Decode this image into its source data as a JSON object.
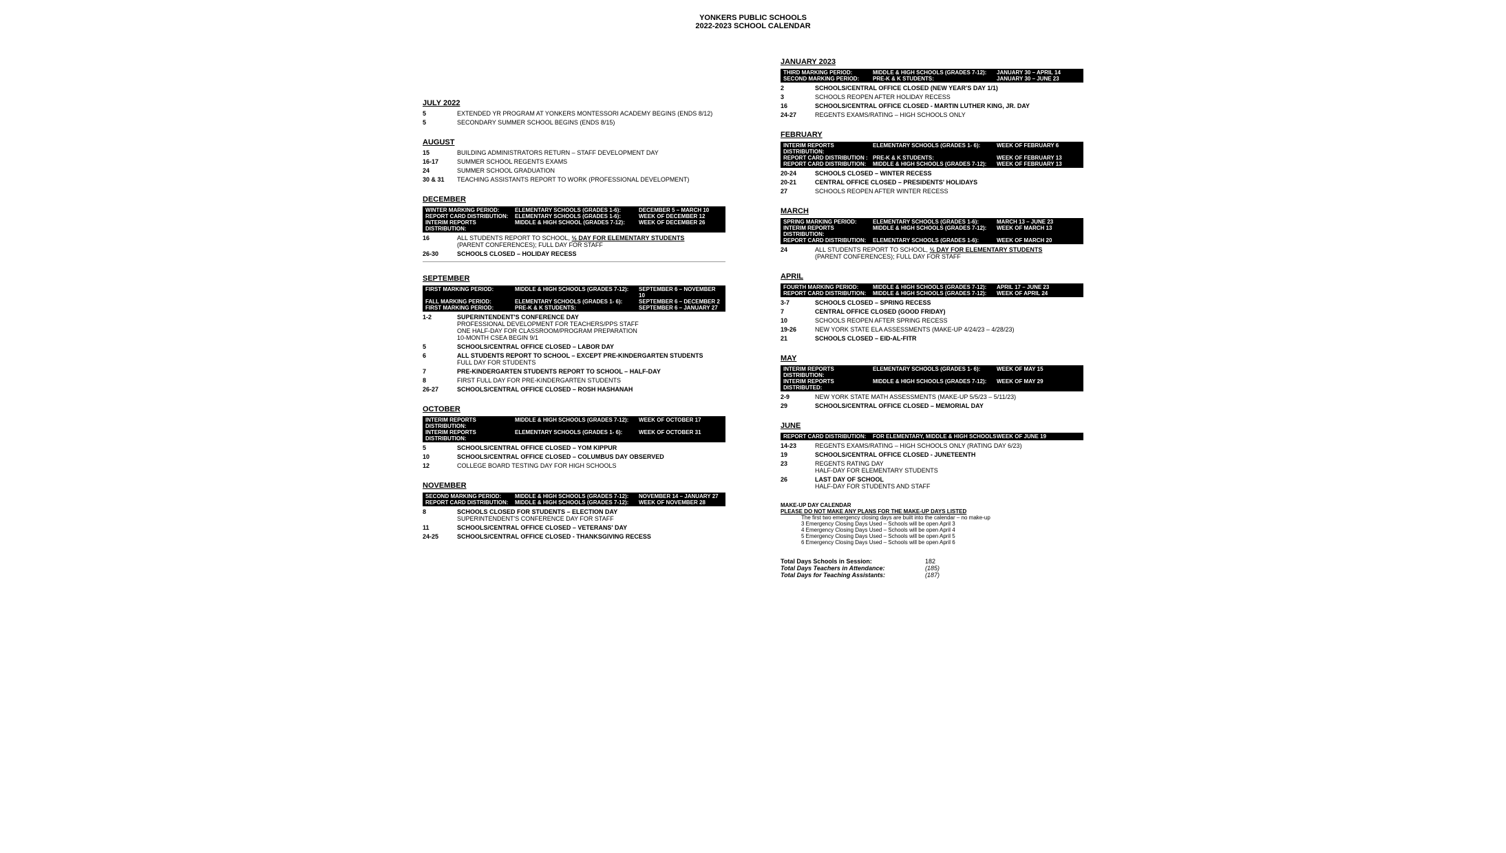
{
  "header": {
    "line1": "YONKERS PUBLIC SCHOOLS",
    "line2": "2022-2023 SCHOOL CALENDAR"
  },
  "colors": {
    "bg": "#ffffff",
    "text": "#000000",
    "banner_bg": "#000000",
    "banner_text": "#ffffff"
  },
  "left": [
    {
      "title": "JULY 2022",
      "banners": [],
      "events": [
        {
          "date": "5",
          "lines": [
            {
              "text": "EXTENDED YR PROGRAM AT YONKERS MONTESSORI ACADEMY BEGINS (ENDS 8/12)"
            }
          ]
        },
        {
          "date": "5",
          "lines": [
            {
              "text": "SECONDARY SUMMER SCHOOL BEGINS (ENDS 8/15)"
            }
          ]
        }
      ]
    },
    {
      "title": "AUGUST",
      "banners": [],
      "events": [
        {
          "date": "15",
          "lines": [
            {
              "text": "BUILDING ADMINISTRATORS RETURN – STAFF DEVELOPMENT DAY"
            }
          ]
        },
        {
          "date": "16-17",
          "lines": [
            {
              "text": "SUMMER SCHOOL REGENTS EXAMS"
            }
          ]
        },
        {
          "date": "24",
          "lines": [
            {
              "text": "SUMMER SCHOOL GRADUATION"
            }
          ]
        },
        {
          "date": "30 & 31",
          "lines": [
            {
              "text": "TEACHING ASSISTANTS REPORT TO WORK (PROFESSIONAL DEVELOPMENT)"
            }
          ]
        }
      ]
    },
    {
      "title": "DECEMBER",
      "banners": [
        {
          "c1": "WINTER MARKING PERIOD:",
          "c2": "ELEMENTARY SCHOOLS (GRADES 1-6):",
          "c3": "DECEMBER 5 – MARCH 10"
        },
        {
          "c1": "REPORT CARD DISTRIBUTION:",
          "c2": "ELEMENTARY SCHOOLS (GRADES 1-6):",
          "c3": "WEEK OF DECEMBER 12"
        },
        {
          "c1": "INTERIM REPORTS DISTRIBUTION:",
          "c2": "MIDDLE & HIGH SCHOOL (GRADES 7-12):",
          "c3": "WEEK OF DECEMBER 26"
        }
      ],
      "events": [
        {
          "date": "16",
          "lines": [
            {
              "text": "ALL STUDENTS REPORT TO SCHOOL, ",
              "inline": true
            },
            {
              "text": "½ DAY FOR ELEMENTARY STUDENTS",
              "bold": true,
              "underline": true
            },
            {
              "text": "(PARENT CONFERENCES); FULL DAY FOR STAFF"
            }
          ]
        },
        {
          "date": "26-30",
          "lines": [
            {
              "text": "SCHOOLS CLOSED – HOLIDAY RECESS",
              "bold": true
            }
          ]
        }
      ],
      "divider_after": true
    },
    {
      "title": "SEPTEMBER",
      "banners": [
        {
          "c1": "FIRST MARKING PERIOD:",
          "c2": "MIDDLE & HIGH SCHOOLS (GRADES 7-12):",
          "c3": "SEPTEMBER 6 – NOVEMBER 10"
        },
        {
          "c1": "FALL MARKING PERIOD:",
          "c2": "ELEMENTARY SCHOOLS   (GRADES 1- 6):",
          "c3": "SEPTEMBER 6 – DECEMBER 2"
        },
        {
          "c1": "FIRST MARKING PERIOD:",
          "c2": "PRE-K  & K STUDENTS:",
          "c3": "SEPTEMBER 6 – JANUARY 27"
        }
      ],
      "events": [
        {
          "date": "1-2",
          "lines": [
            {
              "text": "SUPERINTENDENT'S CONFERENCE DAY",
              "bold": true
            },
            {
              "text": "PROFESSIONAL DEVELOPMENT FOR TEACHERS/PPS STAFF"
            },
            {
              "text": "ONE HALF-DAY FOR CLASSROOM/PROGRAM PREPARATION"
            },
            {
              "text": "10-MONTH CSEA BEGIN 9/1"
            }
          ]
        },
        {
          "date": "5",
          "lines": [
            {
              "text": "SCHOOLS/CENTRAL OFFICE CLOSED – LABOR DAY",
              "bold": true
            }
          ]
        },
        {
          "date": "6",
          "lines": [
            {
              "text": "ALL STUDENTS REPORT TO SCHOOL – EXCEPT PRE-KINDERGARTEN STUDENTS",
              "bold": true
            },
            {
              "text": "FULL DAY FOR STUDENTS"
            }
          ]
        },
        {
          "date": "7",
          "lines": [
            {
              "text": "PRE-KINDERGARTEN STUDENTS REPORT TO SCHOOL – HALF-DAY",
              "bold": true
            }
          ]
        },
        {
          "date": "8",
          "lines": [
            {
              "text": "FIRST FULL DAY FOR PRE-KINDERGARTEN STUDENTS"
            }
          ]
        },
        {
          "date": "26-27",
          "lines": [
            {
              "text": "SCHOOLS/CENTRAL OFFICE CLOSED – ROSH HASHANAH",
              "bold": true
            }
          ]
        }
      ]
    },
    {
      "title": "OCTOBER",
      "banners": [
        {
          "c1": "INTERIM REPORTS DISTRIBUTION:",
          "c2": "MIDDLE & HIGH SCHOOLS (GRADES 7-12):",
          "c3": "WEEK OF OCTOBER 17"
        },
        {
          "c1": "INTERIM REPORTS DISTRIBUTION:",
          "c2": "ELEMENTARY SCHOOLS   (GRADES 1- 6):",
          "c3": "WEEK OF OCTOBER 31"
        }
      ],
      "events": [
        {
          "date": "5",
          "lines": [
            {
              "text": "SCHOOLS/CENTRAL OFFICE CLOSED – YOM KIPPUR",
              "bold": true
            }
          ]
        },
        {
          "date": "10",
          "lines": [
            {
              "text": "SCHOOLS/CENTRAL OFFICE CLOSED – COLUMBUS DAY OBSERVED",
              "bold": true
            }
          ]
        },
        {
          "date": "12",
          "lines": [
            {
              "text": "COLLEGE BOARD TESTING DAY FOR HIGH SCHOOLS"
            }
          ]
        }
      ]
    },
    {
      "title": "NOVEMBER",
      "banners": [
        {
          "c1": "SECOND MARKING PERIOD:",
          "c2": "MIDDLE & HIGH SCHOOLS (GRADES 7-12):",
          "c3": "NOVEMBER 14 – JANUARY 27"
        },
        {
          "c1": "REPORT CARD DISTRIBUTION:",
          "c2": "MIDDLE & HIGH SCHOOLS (GRADES 7-12):",
          "c3": "WEEK OF NOVEMBER 28"
        }
      ],
      "events": [
        {
          "date": "8",
          "lines": [
            {
              "text": "SCHOOLS CLOSED FOR STUDENTS – ELECTION DAY",
              "bold": true
            },
            {
              "text": "SUPERINTENDENT'S CONFERENCE DAY FOR STAFF"
            }
          ]
        },
        {
          "date": "11",
          "lines": [
            {
              "text": "SCHOOLS/CENTRAL OFFICE CLOSED – VETERANS' DAY",
              "bold": true
            }
          ]
        },
        {
          "date": "24-25",
          "lines": [
            {
              "text": "SCHOOLS/CENTRAL OFFICE CLOSED - THANKSGIVING RECESS",
              "bold": true
            }
          ]
        }
      ]
    }
  ],
  "right": [
    {
      "title": "JANUARY 2023",
      "banners": [
        {
          "c1": "THIRD MARKING PERIOD:",
          "c2": "MIDDLE & HIGH SCHOOLS (GRADES 7-12):",
          "c3": "JANUARY 30 – APRIL 14"
        },
        {
          "c1": "SECOND MARKING PERIOD:",
          "c2": "PRE-K & K STUDENTS:",
          "c3": "JANUARY 30 – JUNE 23"
        }
      ],
      "events": [
        {
          "date": "2",
          "lines": [
            {
              "text": "SCHOOLS/CENTRAL OFFICE CLOSED (NEW YEAR'S DAY 1/1)",
              "bold": true
            }
          ]
        },
        {
          "date": "3",
          "lines": [
            {
              "text": "SCHOOLS REOPEN AFTER HOLIDAY RECESS"
            }
          ]
        },
        {
          "date": "16",
          "lines": [
            {
              "text": "SCHOOLS/CENTRAL OFFICE CLOSED - MARTIN LUTHER KING, JR. DAY",
              "bold": true
            }
          ]
        },
        {
          "date": "24-27",
          "lines": [
            {
              "text": "REGENTS EXAMS/RATING – HIGH SCHOOLS ONLY"
            }
          ]
        }
      ]
    },
    {
      "title": "FEBRUARY",
      "banners": [
        {
          "c1": "INTERIM REPORTS DISTRIBUTION:",
          "c2": "ELEMENTARY SCHOOLS   (GRADES 1- 6):",
          "c3": "WEEK OF FEBRUARY 6"
        },
        {
          "c1": "REPORT CARD DISTRIBUTION :",
          "c2": "PRE-K & K STUDENTS:",
          "c3": "WEEK OF FEBRUARY 13"
        },
        {
          "c1": "REPORT CARD DISTRIBUTION:",
          "c2": "MIDDLE & HIGH SCHOOLS (GRADES 7-12):",
          "c3": "WEEK OF FEBRUARY 13"
        }
      ],
      "events": [
        {
          "date": "20-24",
          "lines": [
            {
              "text": "SCHOOLS CLOSED – WINTER RECESS",
              "bold": true
            }
          ]
        },
        {
          "date": "20-21",
          "lines": [
            {
              "text": "CENTRAL OFFICE CLOSED – PRESIDENTS' HOLIDAYS",
              "bold": true
            }
          ]
        },
        {
          "date": "27",
          "lines": [
            {
              "text": "SCHOOLS REOPEN AFTER WINTER RECESS"
            }
          ]
        }
      ]
    },
    {
      "title": "MARCH",
      "banners": [
        {
          "c1": "SPRING MARKING PERIOD:",
          "c2": "ELEMENTARY SCHOOLS   (GRADES 1-6):",
          "c3": "MARCH 13 – JUNE 23"
        },
        {
          "c1": "INTERIM REPORTS DISTRIBUTION:",
          "c2": "MIDDLE & HIGH SCHOOLS (GRADES 7-12):",
          "c3": "WEEK OF MARCH 13"
        },
        {
          "c1": "REPORT CARD DISTRIBUTION:",
          "c2": "ELEMENTARY SCHOOLS   (GRADES 1-6):",
          "c3": "WEEK OF MARCH 20"
        }
      ],
      "events": [
        {
          "date": "24",
          "lines": [
            {
              "text": "ALL STUDENTS REPORT TO SCHOOL, ",
              "inline": true
            },
            {
              "text": "½ DAY FOR ELEMENTARY STUDENTS",
              "bold": true,
              "underline": true
            },
            {
              "text": "(PARENT CONFERENCES); FULL DAY FOR STAFF"
            }
          ]
        }
      ]
    },
    {
      "title": "APRIL",
      "banners": [
        {
          "c1": "FOURTH MARKING PERIOD:",
          "c2": "MIDDLE & HIGH SCHOOLS (GRADES 7-12):",
          "c3": "APRIL 17 – JUNE 23"
        },
        {
          "c1": "REPORT CARD DISTRIBUTION:",
          "c2": "MIDDLE & HIGH SCHOOLS (GRADES 7-12):",
          "c3": "WEEK OF APRIL 24"
        }
      ],
      "events": [
        {
          "date": "3-7",
          "lines": [
            {
              "text": "SCHOOLS CLOSED  – SPRING RECESS",
              "bold": true
            }
          ]
        },
        {
          "date": "7",
          "lines": [
            {
              "text": "CENTRAL OFFICE CLOSED (GOOD FRIDAY)",
              "bold": true
            }
          ]
        },
        {
          "date": "10",
          "lines": [
            {
              "text": "SCHOOLS REOPEN AFTER SPRING RECESS"
            }
          ]
        },
        {
          "date": "19-26",
          "lines": [
            {
              "text": "NEW YORK STATE ELA ASSESSMENTS (MAKE-UP 4/24/23 – 4/28/23)"
            }
          ]
        },
        {
          "date": "21",
          "lines": [
            {
              "text": "SCHOOLS CLOSED – EID-AL-FITR",
              "bold": true
            }
          ]
        }
      ]
    },
    {
      "title": "MAY",
      "banners": [
        {
          "c1": "INTERIM REPORTS DISTRIBUTION:",
          "c2": "ELEMENTARY SCHOOLS   (GRADES 1- 6):",
          "c3": "WEEK OF MAY 15"
        },
        {
          "c1": "INTERIM REPORTS DISTRIBUTED:",
          "c2": "MIDDLE & HIGH SCHOOLS (GRADES 7-12):",
          "c3": "WEEK OF MAY 29"
        }
      ],
      "events": [
        {
          "date": "2-9",
          "lines": [
            {
              "text": "NEW YORK STATE MATH ASSESSMENTS (MAKE-UP 5/5/23 – 5/11/23)"
            }
          ]
        },
        {
          "date": "29",
          "lines": [
            {
              "text": "SCHOOLS/CENTRAL OFFICE CLOSED  – MEMORIAL DAY",
              "bold": true
            }
          ]
        }
      ]
    },
    {
      "title": "JUNE",
      "banners": [
        {
          "c1": "REPORT CARD DISTRIBUTION:",
          "c2": "FOR ELEMENTARY, MIDDLE & HIGH SCHOOLS",
          "c3": "WEEK OF JUNE 19"
        }
      ],
      "events": [
        {
          "date": "14-23",
          "lines": [
            {
              "text": "REGENTS EXAMS/RATING – HIGH SCHOOLS ONLY (RATING DAY 6/23)"
            }
          ]
        },
        {
          "date": "19",
          "lines": [
            {
              "text": "SCHOOLS/CENTRAL OFFICE CLOSED - JUNETEENTH",
              "bold": true
            }
          ]
        },
        {
          "date": "23",
          "lines": [
            {
              "text": "REGENTS RATING DAY"
            },
            {
              "text": "HALF-DAY FOR ELEMENTARY STUDENTS"
            }
          ]
        },
        {
          "date": "26",
          "lines": [
            {
              "text": "LAST DAY OF SCHOOL",
              "bold": true
            },
            {
              "text": "HALF-DAY FOR STUDENTS AND STAFF"
            }
          ]
        }
      ]
    }
  ],
  "makeup": {
    "title": "MAKE-UP DAY CALENDAR",
    "sub": "PLEASE DO NOT MAKE ANY PLANS FOR THE MAKE-UP DAYS LISTED",
    "lines": [
      "The first two emergency closing days are built into the calendar – no make-up",
      "3 Emergency Closing Days Used – Schools will be open April 3",
      "4 Emergency Closing Days Used – Schools will be open April 4",
      "5 Emergency Closing Days Used – Schools will be open April 5",
      "6 Emergency Closing Days Used – Schools will be open April 6"
    ]
  },
  "totals": {
    "r1_label": "Total Days Schools in Session:",
    "r1_val": "182",
    "r2_label": "Total Days Teachers in Attendance:",
    "r2_val": "(185)",
    "r3_label": "Total Days for Teaching Assistants:",
    "r3_val": "(187)"
  }
}
